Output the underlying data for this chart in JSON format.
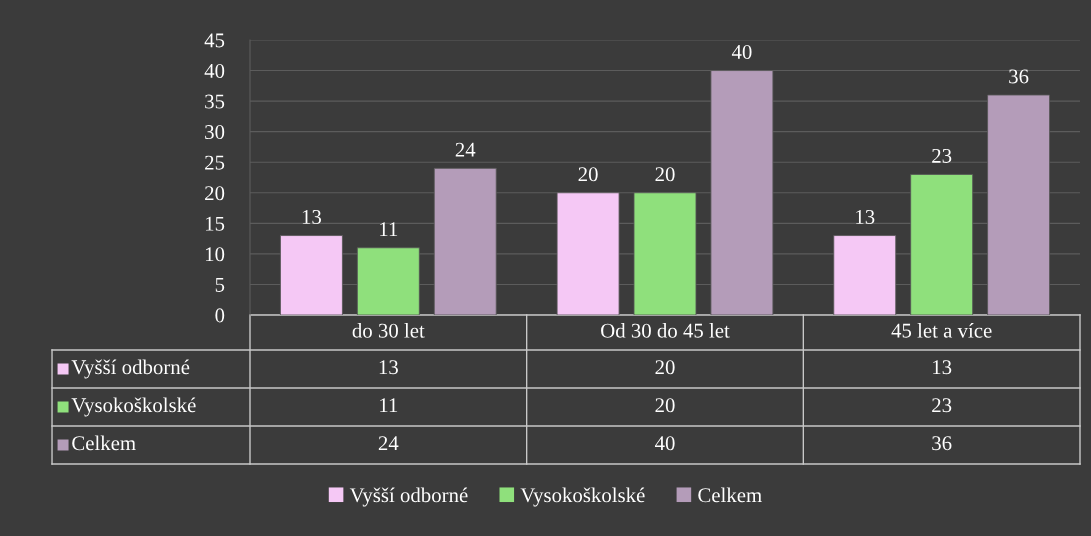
{
  "chart_data": {
    "type": "bar",
    "categories": [
      "do 30 let",
      "Od 30 do 45 let",
      "45 let a více"
    ],
    "series": [
      {
        "name": "Vyšší odborné",
        "color": "#f5c8f5",
        "values": [
          13,
          20,
          13
        ],
        "value_labels": [
          "13",
          "20",
          "13"
        ]
      },
      {
        "name": "Vysokoškolské",
        "color": "#8fe07c",
        "values": [
          11,
          20,
          23
        ],
        "value_labels": [
          "11",
          "20",
          "23"
        ]
      },
      {
        "name": "Celkem",
        "color": "#b49cb9",
        "values": [
          24,
          40,
          36
        ],
        "value_labels": [
          "24",
          "40",
          "36"
        ]
      }
    ],
    "annotations": [
      "13",
      "20",
      "13",
      "11",
      "20",
      "23",
      "24",
      "40",
      "36"
    ],
    "ylim": [
      0,
      45
    ],
    "yticks": [
      0,
      5,
      10,
      15,
      20,
      25,
      30,
      35,
      40,
      45
    ],
    "grid": "y",
    "legend": "bottom",
    "data_labels": true
  }
}
